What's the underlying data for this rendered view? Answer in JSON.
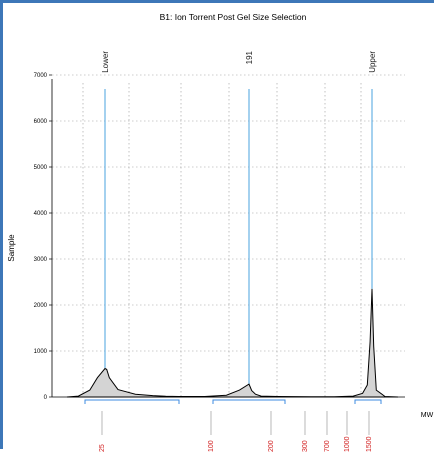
{
  "chart_data": {
    "type": "line",
    "title": "B1: Ion Torrent Post Gel Size Selection",
    "xlabel": "MW",
    "ylabel": "Sample",
    "ylim": [
      0,
      7000
    ],
    "yticks": [
      0,
      1000,
      2000,
      3000,
      4000,
      5000,
      6000,
      7000
    ],
    "grid": true,
    "peaks": [
      {
        "label": "Lower",
        "x": 25,
        "y": 620
      },
      {
        "label": "191",
        "x": 191,
        "y": 280
      },
      {
        "label": "Upper",
        "x": 1500,
        "y": 2350
      }
    ],
    "x_size_labels": [
      "25",
      "100",
      "200",
      "300",
      "700",
      "1000",
      "1500"
    ],
    "series": [
      {
        "x": [
          15,
          18,
          21,
          23,
          25,
          27,
          30,
          40,
          60,
          80,
          95,
          110,
          140,
          165,
          180,
          191,
          200,
          220,
          260,
          320,
          500,
          850,
          1100,
          1300,
          1400,
          1450,
          1480,
          1500,
          1520,
          1550,
          1650,
          1800
        ],
        "y": [
          0,
          20,
          150,
          420,
          620,
          600,
          420,
          160,
          60,
          30,
          15,
          10,
          10,
          40,
          150,
          280,
          240,
          140,
          60,
          20,
          10,
          5,
          5,
          20,
          80,
          260,
          1200,
          2350,
          1100,
          150,
          10,
          0
        ]
      }
    ]
  }
}
